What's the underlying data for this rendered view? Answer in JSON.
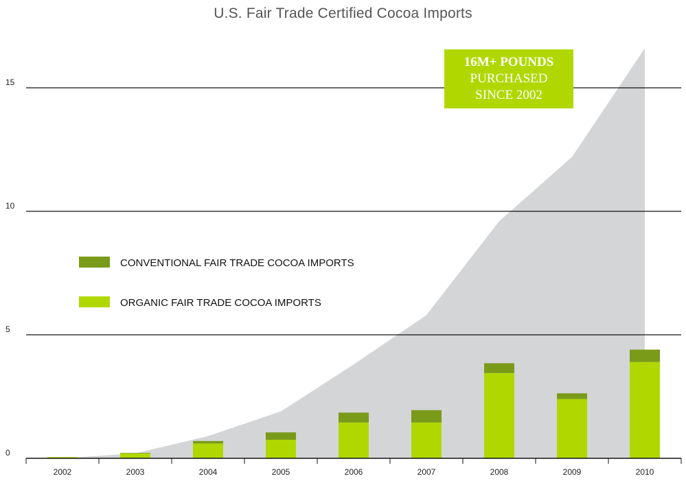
{
  "chart_data": {
    "type": "bar",
    "title": "U.S. Fair Trade Certified Cocoa Imports",
    "categories": [
      "2002",
      "2003",
      "2004",
      "2005",
      "2006",
      "2007",
      "2008",
      "2009",
      "2010"
    ],
    "series": [
      {
        "name": "ORGANIC FAIR TRADE COCOA IMPORTS",
        "values": [
          0.05,
          0.2,
          0.6,
          0.75,
          1.45,
          1.45,
          3.45,
          2.4,
          3.9
        ],
        "color": "#b0d800"
      },
      {
        "name": "CONVENTIONAL FAIR TRADE COCOA IMPORTS",
        "values": [
          0.0,
          0.02,
          0.1,
          0.3,
          0.4,
          0.5,
          0.4,
          0.23,
          0.5
        ],
        "color": "#7a9a1a"
      }
    ],
    "cumulative_area": {
      "values": [
        0.0,
        0.2,
        0.9,
        1.9,
        3.8,
        5.8,
        9.6,
        12.2,
        16.6
      ],
      "color": "#d4d5d7"
    },
    "yticks": [
      "0",
      "5",
      "10",
      "15"
    ],
    "ytick_values": [
      0,
      5,
      10,
      15
    ],
    "ylim": [
      0,
      17
    ],
    "xlabel": "",
    "ylabel": "",
    "grid": true,
    "legend_position": "left-middle",
    "annotation": {
      "line1": "16M+ POUNDS",
      "line2": "PURCHASED",
      "line3": "SINCE 2002"
    }
  }
}
